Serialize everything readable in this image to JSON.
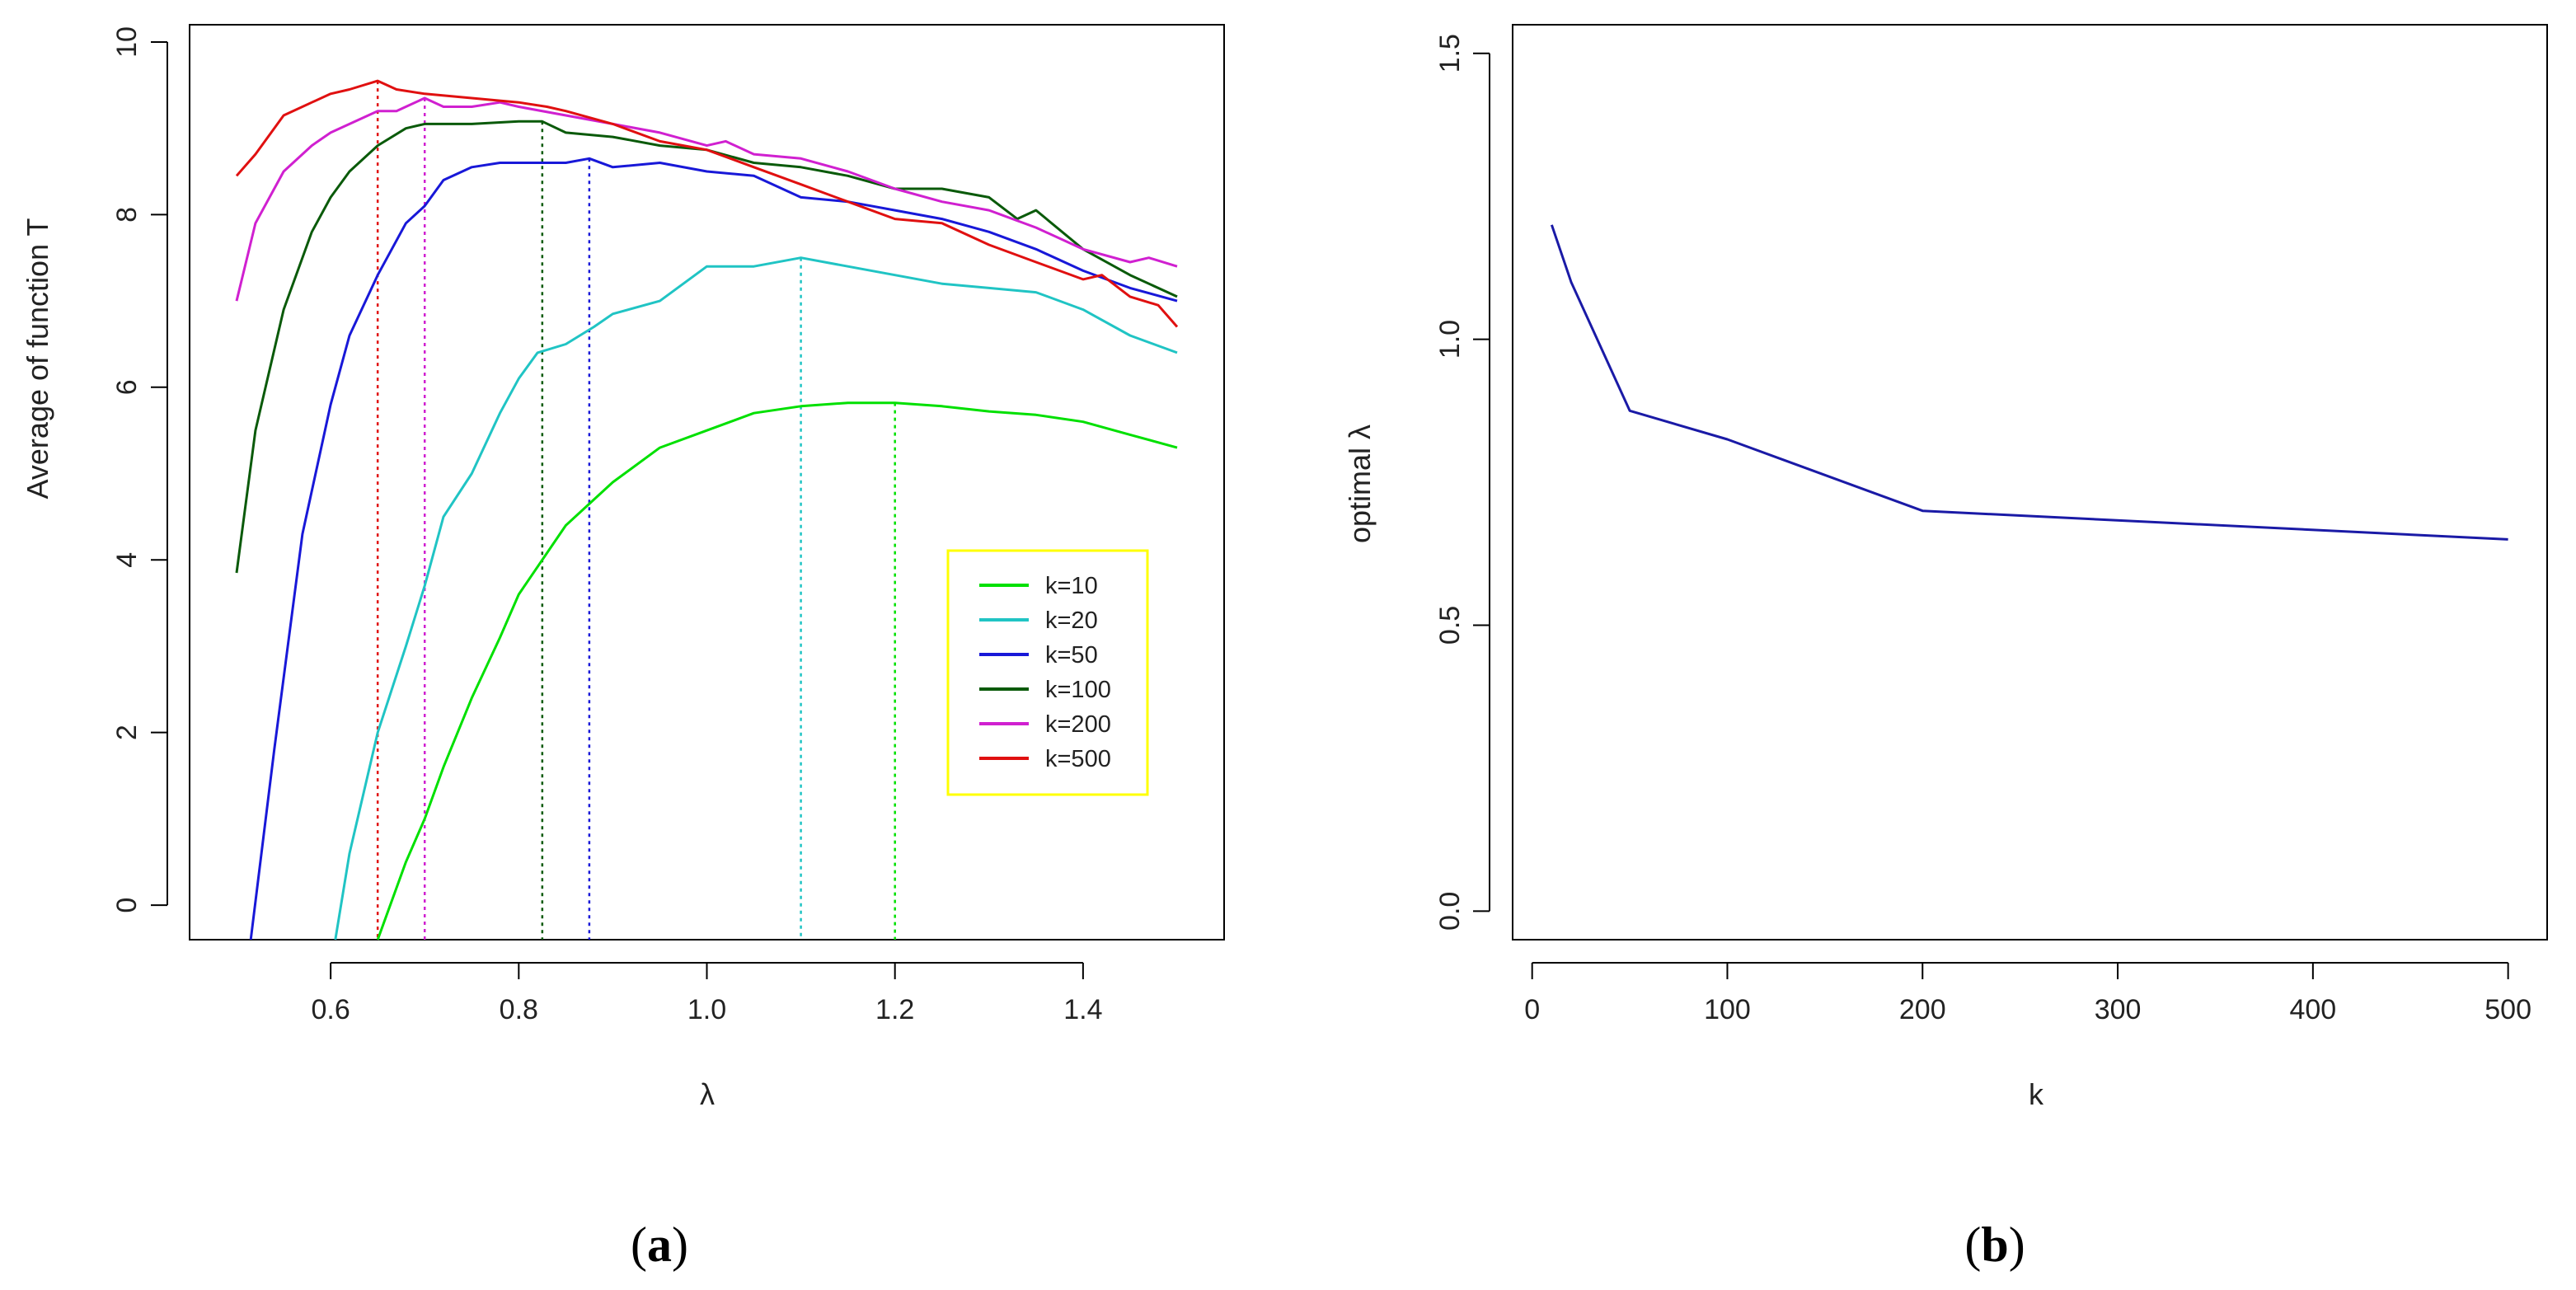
{
  "chart_data": [
    {
      "type": "line",
      "caption_open": "(",
      "caption_letter": "a",
      "caption_close": ")",
      "title": "",
      "xlabel": "λ",
      "ylabel": "Average of function T",
      "xlim": [
        0.45,
        1.55
      ],
      "ylim": [
        -0.4,
        10.2
      ],
      "xticks": [
        0.6,
        0.8,
        1.0,
        1.2,
        1.4
      ],
      "xtick_labels": [
        "0.6",
        "0.8",
        "1.0",
        "1.2",
        "1.4"
      ],
      "yticks": [
        0,
        2,
        4,
        6,
        8,
        10
      ],
      "ytick_labels": [
        "0",
        "2",
        "4",
        "6",
        "8",
        "10"
      ],
      "legend_position": "lower-right",
      "legend_border": "#ffff00",
      "series": [
        {
          "name": "k=10",
          "color": "#00e000",
          "optimal_lambda": 1.2,
          "x": [
            0.65,
            0.68,
            0.7,
            0.72,
            0.75,
            0.78,
            0.8,
            0.85,
            0.9,
            0.95,
            1.0,
            1.05,
            1.1,
            1.15,
            1.2,
            1.25,
            1.3,
            1.35,
            1.4,
            1.45,
            1.5
          ],
          "y": [
            -0.4,
            0.5,
            1.0,
            1.6,
            2.4,
            3.1,
            3.6,
            4.4,
            4.9,
            5.3,
            5.5,
            5.7,
            5.78,
            5.82,
            5.82,
            5.78,
            5.72,
            5.68,
            5.6,
            5.45,
            5.3
          ]
        },
        {
          "name": "k=20",
          "color": "#20c4c4",
          "optimal_lambda": 1.1,
          "x": [
            0.605,
            0.62,
            0.65,
            0.68,
            0.7,
            0.72,
            0.75,
            0.78,
            0.8,
            0.82,
            0.85,
            0.88,
            0.9,
            0.95,
            1.0,
            1.05,
            1.1,
            1.15,
            1.2,
            1.25,
            1.3,
            1.35,
            1.4,
            1.45,
            1.5
          ],
          "y": [
            -0.4,
            0.6,
            2.0,
            3.0,
            3.7,
            4.5,
            5.0,
            5.7,
            6.1,
            6.4,
            6.5,
            6.7,
            6.85,
            7.0,
            7.4,
            7.4,
            7.5,
            7.4,
            7.3,
            7.2,
            7.15,
            7.1,
            6.9,
            6.6,
            6.4
          ]
        },
        {
          "name": "k=50",
          "color": "#1818d8",
          "optimal_lambda": 0.875,
          "x": [
            0.515,
            0.54,
            0.57,
            0.6,
            0.62,
            0.65,
            0.68,
            0.7,
            0.72,
            0.75,
            0.78,
            0.8,
            0.85,
            0.875,
            0.9,
            0.95,
            1.0,
            1.05,
            1.1,
            1.15,
            1.2,
            1.25,
            1.3,
            1.35,
            1.4,
            1.45,
            1.5
          ],
          "y": [
            -0.4,
            1.8,
            4.3,
            5.8,
            6.6,
            7.3,
            7.9,
            8.1,
            8.4,
            8.55,
            8.6,
            8.6,
            8.6,
            8.65,
            8.55,
            8.6,
            8.5,
            8.45,
            8.2,
            8.15,
            8.05,
            7.95,
            7.8,
            7.6,
            7.35,
            7.15,
            7.0
          ]
        },
        {
          "name": "k=100",
          "color": "#0a5a0a",
          "optimal_lambda": 0.825,
          "x": [
            0.5,
            0.52,
            0.55,
            0.58,
            0.6,
            0.62,
            0.65,
            0.68,
            0.7,
            0.75,
            0.8,
            0.825,
            0.85,
            0.9,
            0.95,
            1.0,
            1.05,
            1.1,
            1.15,
            1.2,
            1.25,
            1.3,
            1.33,
            1.35,
            1.4,
            1.45,
            1.5
          ],
          "y": [
            3.85,
            5.5,
            6.9,
            7.8,
            8.2,
            8.5,
            8.8,
            9.0,
            9.05,
            9.05,
            9.08,
            9.08,
            8.95,
            8.9,
            8.8,
            8.75,
            8.6,
            8.55,
            8.45,
            8.3,
            8.3,
            8.2,
            7.95,
            8.05,
            7.6,
            7.3,
            7.05
          ]
        },
        {
          "name": "k=200",
          "color": "#d020d0",
          "optimal_lambda": 0.7,
          "x": [
            0.5,
            0.52,
            0.55,
            0.58,
            0.6,
            0.62,
            0.65,
            0.67,
            0.7,
            0.72,
            0.75,
            0.78,
            0.8,
            0.85,
            0.9,
            0.95,
            1.0,
            1.02,
            1.05,
            1.1,
            1.15,
            1.2,
            1.25,
            1.3,
            1.35,
            1.4,
            1.45,
            1.47,
            1.5
          ],
          "y": [
            7.0,
            7.9,
            8.5,
            8.8,
            8.95,
            9.05,
            9.2,
            9.2,
            9.35,
            9.25,
            9.25,
            9.3,
            9.25,
            9.15,
            9.05,
            8.95,
            8.8,
            8.85,
            8.7,
            8.65,
            8.5,
            8.3,
            8.15,
            8.05,
            7.85,
            7.6,
            7.45,
            7.5,
            7.4
          ]
        },
        {
          "name": "k=500",
          "color": "#e01010",
          "optimal_lambda": 0.65,
          "x": [
            0.5,
            0.52,
            0.55,
            0.58,
            0.6,
            0.62,
            0.65,
            0.67,
            0.7,
            0.75,
            0.8,
            0.83,
            0.85,
            0.9,
            0.95,
            1.0,
            1.05,
            1.1,
            1.15,
            1.2,
            1.25,
            1.3,
            1.35,
            1.4,
            1.42,
            1.45,
            1.48,
            1.5
          ],
          "y": [
            8.45,
            8.7,
            9.15,
            9.3,
            9.4,
            9.45,
            9.55,
            9.45,
            9.4,
            9.35,
            9.3,
            9.25,
            9.2,
            9.05,
            8.85,
            8.75,
            8.55,
            8.35,
            8.15,
            7.95,
            7.9,
            7.65,
            7.45,
            7.25,
            7.3,
            7.05,
            6.95,
            6.7
          ]
        }
      ]
    },
    {
      "type": "line",
      "caption_open": "(",
      "caption_letter": "b",
      "caption_close": ")",
      "title": "",
      "xlabel": "k",
      "ylabel": "optimal λ",
      "xlim": [
        -10,
        520
      ],
      "ylim": [
        -0.05,
        1.55
      ],
      "xticks": [
        0,
        100,
        200,
        300,
        400,
        500
      ],
      "xtick_labels": [
        "0",
        "100",
        "200",
        "300",
        "400",
        "500"
      ],
      "yticks": [
        0.0,
        0.5,
        1.0,
        1.5
      ],
      "ytick_labels": [
        "0.0",
        "0.5",
        "1.0",
        "1.5"
      ],
      "series": [
        {
          "name": "optimal lambda",
          "color": "#1a1aa6",
          "x": [
            10,
            20,
            50,
            100,
            200,
            500
          ],
          "y": [
            1.2,
            1.1,
            0.875,
            0.825,
            0.7,
            0.65
          ]
        }
      ]
    }
  ]
}
